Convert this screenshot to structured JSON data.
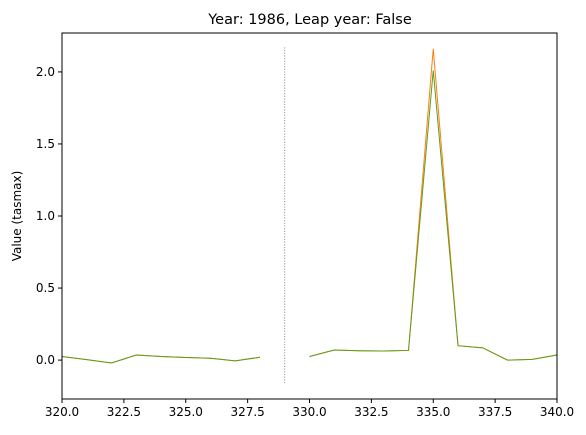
{
  "chart_data": {
    "type": "line",
    "title": "Year: 1986, Leap year: False",
    "xlabel": "",
    "ylabel": "Value (tasmax)",
    "xlim": [
      320,
      340
    ],
    "ylim": [
      -0.27,
      2.27
    ],
    "xticks": [
      "320.0",
      "322.5",
      "325.0",
      "327.5",
      "330.0",
      "332.5",
      "335.0",
      "337.5",
      "340.0"
    ],
    "yticks": [
      "0.0",
      "0.5",
      "1.0",
      "1.5",
      "2.0"
    ],
    "grid": false,
    "vline": {
      "x": 329,
      "y_range": [
        -0.16,
        2.17
      ],
      "style": "dotted",
      "color": "#808080"
    },
    "series": [
      {
        "color": "#ff7f0e",
        "points": [
          [
            320,
            0.025
          ],
          [
            321,
            0.003
          ],
          [
            322,
            -0.02
          ],
          [
            323,
            0.035
          ],
          [
            324,
            0.025
          ],
          [
            325,
            0.018
          ],
          [
            326,
            0.013
          ],
          [
            327,
            -0.005
          ],
          [
            328,
            0.02
          ],
          [
            330,
            0.025
          ],
          [
            331,
            0.07
          ],
          [
            332,
            0.065
          ],
          [
            333,
            0.063
          ],
          [
            334,
            0.067
          ],
          [
            335,
            2.16
          ],
          [
            336,
            0.1
          ],
          [
            337,
            0.085
          ],
          [
            338,
            0.0
          ],
          [
            339,
            0.005
          ],
          [
            340,
            0.035
          ]
        ]
      },
      {
        "color": "#5a9e1e",
        "points": [
          [
            320,
            0.025
          ],
          [
            321,
            0.003
          ],
          [
            322,
            -0.02
          ],
          [
            323,
            0.035
          ],
          [
            324,
            0.025
          ],
          [
            325,
            0.018
          ],
          [
            326,
            0.013
          ],
          [
            327,
            -0.005
          ],
          [
            328,
            0.02
          ],
          [
            330,
            0.025
          ],
          [
            331,
            0.07
          ],
          [
            332,
            0.065
          ],
          [
            333,
            0.063
          ],
          [
            334,
            0.067
          ],
          [
            335,
            2.01
          ],
          [
            336,
            0.1
          ],
          [
            337,
            0.085
          ],
          [
            338,
            0.0
          ],
          [
            339,
            0.005
          ],
          [
            340,
            0.035
          ]
        ]
      }
    ]
  }
}
